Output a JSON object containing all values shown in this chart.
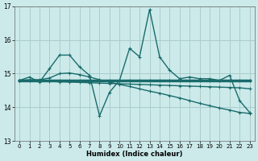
{
  "xlabel": "Humidex (Indice chaleur)",
  "xlim": [
    -0.5,
    23.5
  ],
  "ylim": [
    13,
    17
  ],
  "yticks": [
    13,
    14,
    15,
    16,
    17
  ],
  "xticks": [
    0,
    1,
    2,
    3,
    4,
    5,
    6,
    7,
    8,
    9,
    10,
    11,
    12,
    13,
    14,
    15,
    16,
    17,
    18,
    19,
    20,
    21,
    22,
    23
  ],
  "bg_color": "#cceaea",
  "grid_color": "#aacccc",
  "line_color": "#1a6b6b",
  "series": [
    [
      14.8,
      14.9,
      14.75,
      15.15,
      15.55,
      15.55,
      15.2,
      14.95,
      13.75,
      14.45,
      14.8,
      15.75,
      15.5,
      16.9,
      15.5,
      15.1,
      14.85,
      14.9,
      14.85,
      14.85,
      14.8,
      14.95,
      14.2,
      13.85
    ],
    [
      14.8,
      14.8,
      14.8,
      14.8,
      14.8,
      14.8,
      14.8,
      14.8,
      14.8,
      14.8,
      14.8,
      14.8,
      14.8,
      14.8,
      14.8,
      14.8,
      14.8,
      14.8,
      14.8,
      14.8,
      14.8,
      14.8,
      14.8,
      14.8
    ],
    [
      14.8,
      14.79,
      14.78,
      14.77,
      14.76,
      14.75,
      14.74,
      14.73,
      14.72,
      14.71,
      14.7,
      14.69,
      14.68,
      14.67,
      14.66,
      14.65,
      14.64,
      14.63,
      14.62,
      14.61,
      14.6,
      14.59,
      14.58,
      14.55
    ],
    [
      14.8,
      14.82,
      14.82,
      14.87,
      15.0,
      15.02,
      14.97,
      14.9,
      14.82,
      14.75,
      14.68,
      14.62,
      14.55,
      14.48,
      14.42,
      14.35,
      14.28,
      14.2,
      14.12,
      14.05,
      13.98,
      13.92,
      13.85,
      13.82
    ]
  ],
  "linewidths": [
    1.0,
    2.5,
    1.0,
    1.0
  ]
}
